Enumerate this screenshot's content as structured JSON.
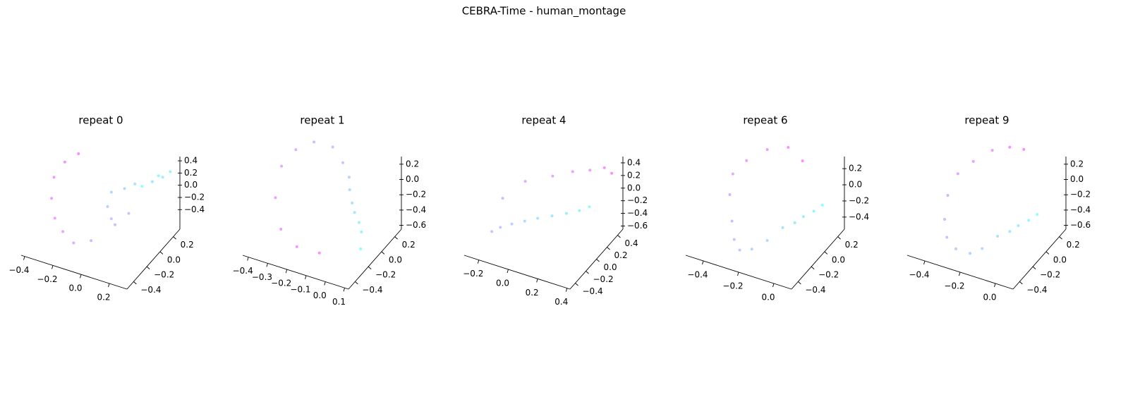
{
  "title": "CEBRA-Time - human_montage",
  "chart_data": [
    {
      "type": "scatter3d",
      "title": "repeat 0",
      "colormap": "cool",
      "x": [
        0.15,
        0.22,
        0.28,
        0.25,
        0.2,
        0.1,
        0.05,
        -0.02,
        0.0,
        0.05,
        0.15,
        0.1,
        0.0,
        -0.1,
        -0.2,
        -0.28,
        -0.35,
        -0.38,
        -0.35,
        -0.3
      ],
      "y": [
        0.1,
        0.2,
        0.25,
        0.2,
        0.15,
        0.1,
        0.05,
        0.0,
        -0.1,
        -0.15,
        -0.1,
        -0.2,
        -0.35,
        -0.4,
        -0.35,
        -0.3,
        -0.2,
        -0.1,
        0.0,
        0.1
      ],
      "z": [
        0.1,
        0.2,
        0.25,
        0.2,
        0.15,
        0.1,
        0.05,
        0.0,
        -0.1,
        -0.2,
        -0.1,
        -0.2,
        -0.35,
        -0.4,
        -0.35,
        -0.25,
        -0.1,
        0.1,
        0.25,
        0.3
      ],
      "xlim": [
        -0.425,
        0.325
      ],
      "ylim": [
        -0.5,
        0.3
      ],
      "zlim": [
        -0.72,
        0.47
      ],
      "xticks": [
        {
          "value": -0.4,
          "label": "−0.4"
        },
        {
          "value": -0.2,
          "label": "−0.2"
        },
        {
          "value": 0,
          "label": "0.0"
        },
        0.2
      ],
      "yticks": [
        {
          "value": -0.4,
          "label": "−0.4"
        },
        {
          "value": -0.2,
          "label": "−0.2"
        },
        {
          "value": 0,
          "label": "0.0"
        },
        0.2
      ],
      "zticks": [
        {
          "value": -0.4,
          "label": "−0.4"
        },
        {
          "value": -0.2,
          "label": "−0.2"
        },
        {
          "value": 0,
          "label": "0.0"
        },
        0.2,
        0.4
      ]
    },
    {
      "type": "scatter3d",
      "title": "repeat 1",
      "colormap": "cool",
      "x": [
        0.08,
        0.05,
        0.02,
        -0.02,
        -0.05,
        -0.08,
        -0.1,
        -0.15,
        -0.22,
        -0.3,
        -0.36,
        -0.4,
        -0.38,
        -0.3,
        -0.2,
        -0.1
      ],
      "y": [
        -0.2,
        -0.1,
        -0.05,
        0.0,
        0.05,
        0.1,
        0.15,
        0.2,
        0.25,
        0.2,
        0.1,
        0.0,
        -0.15,
        -0.3,
        -0.35,
        -0.3
      ],
      "z": [
        -0.45,
        -0.35,
        -0.3,
        -0.25,
        -0.2,
        -0.1,
        0.0,
        0.1,
        0.2,
        0.25,
        0.2,
        0.05,
        -0.2,
        -0.4,
        -0.5,
        -0.55
      ],
      "xlim": [
        -0.43,
        0.12
      ],
      "ylim": [
        -0.5,
        0.3
      ],
      "zlim": [
        -0.65,
        0.3
      ],
      "xticks": [
        {
          "value": -0.4,
          "label": "−0.4"
        },
        {
          "value": -0.3,
          "label": "−0.3"
        },
        {
          "value": -0.2,
          "label": "−0.2"
        },
        {
          "value": -0.1,
          "label": "−0.1"
        },
        {
          "value": 0,
          "label": "0.0"
        },
        0.1
      ],
      "yticks": [
        {
          "value": -0.4,
          "label": "−0.4"
        },
        {
          "value": -0.2,
          "label": "−0.2"
        },
        {
          "value": 0,
          "label": "0.0"
        },
        0.2
      ],
      "zticks": [
        {
          "value": -0.6,
          "label": "−0.6"
        },
        {
          "value": -0.4,
          "label": "−0.4"
        },
        {
          "value": -0.2,
          "label": "−0.2"
        },
        {
          "value": 0,
          "label": "0.0"
        },
        0.2
      ]
    },
    {
      "type": "scatter3d",
      "title": "repeat 4",
      "colormap": "cool",
      "x": [
        0.3,
        0.25,
        0.18,
        0.1,
        0.02,
        -0.05,
        -0.12,
        -0.18,
        -0.22,
        -0.2,
        -0.1,
        0.05,
        0.15,
        0.25,
        0.33,
        0.38
      ],
      "y": [
        0.2,
        0.15,
        0.1,
        0.05,
        0.0,
        -0.05,
        -0.1,
        -0.15,
        -0.2,
        -0.05,
        0.1,
        0.2,
        0.3,
        0.35,
        0.4,
        0.4
      ],
      "z": [
        -0.1,
        -0.15,
        -0.2,
        -0.25,
        -0.3,
        -0.35,
        -0.4,
        -0.45,
        -0.5,
        -0.1,
        0.1,
        0.2,
        0.25,
        0.3,
        0.35,
        0.3
      ],
      "xlim": [
        -0.3,
        0.42
      ],
      "ylim": [
        -0.5,
        0.5
      ],
      "zlim": [
        -0.65,
        0.5
      ],
      "xticks": [
        {
          "value": -0.2,
          "label": "−0.2"
        },
        {
          "value": 0,
          "label": "0.0"
        },
        0.2,
        0.4
      ],
      "yticks": [
        {
          "value": -0.4,
          "label": "−0.4"
        },
        {
          "value": -0.2,
          "label": "−0.2"
        },
        {
          "value": 0,
          "label": "0.0"
        },
        0.2,
        0.4
      ],
      "zticks": [
        {
          "value": -0.6,
          "label": "−0.6"
        },
        {
          "value": -0.4,
          "label": "−0.4"
        },
        {
          "value": -0.2,
          "label": "−0.2"
        },
        {
          "value": 0,
          "label": "0.0"
        },
        0.2,
        0.4
      ]
    },
    {
      "type": "scatter3d",
      "title": "repeat 6",
      "colormap": "cool",
      "x": [
        0.05,
        0.02,
        -0.02,
        -0.05,
        -0.1,
        -0.15,
        -0.2,
        -0.25,
        -0.3,
        -0.35,
        -0.4,
        -0.42,
        -0.38,
        -0.3,
        -0.2,
        -0.1
      ],
      "y": [
        0.1,
        0.05,
        0.0,
        -0.05,
        -0.1,
        -0.2,
        -0.3,
        -0.35,
        -0.3,
        -0.2,
        -0.1,
        0.0,
        0.1,
        0.2,
        0.25,
        0.2
      ],
      "z": [
        -0.1,
        -0.15,
        -0.2,
        -0.25,
        -0.3,
        -0.4,
        -0.45,
        -0.45,
        -0.4,
        -0.3,
        -0.1,
        0.05,
        0.15,
        0.25,
        0.3,
        0.25
      ],
      "xlim": [
        -0.5,
        0.1
      ],
      "ylim": [
        -0.5,
        0.3
      ],
      "zlim": [
        -0.55,
        0.35
      ],
      "xticks": [
        {
          "value": -0.4,
          "label": "−0.4"
        },
        {
          "value": -0.2,
          "label": "−0.2"
        },
        {
          "value": 0,
          "label": "0.0"
        }
      ],
      "yticks": [
        {
          "value": -0.4,
          "label": "−0.4"
        },
        {
          "value": -0.2,
          "label": "−0.2"
        },
        {
          "value": 0,
          "label": "0.0"
        },
        0.2
      ],
      "zticks": [
        {
          "value": -0.4,
          "label": "−0.4"
        },
        {
          "value": -0.2,
          "label": "−0.2"
        },
        {
          "value": 0,
          "label": "0.0"
        },
        0.2
      ]
    },
    {
      "type": "scatter3d",
      "title": "repeat 9",
      "colormap": "cool",
      "x": [
        0.05,
        0.02,
        -0.02,
        -0.05,
        -0.1,
        -0.15,
        -0.2,
        -0.28,
        -0.35,
        -0.4,
        -0.42,
        -0.4,
        -0.35,
        -0.28,
        -0.2,
        -0.12
      ],
      "y": [
        0.0,
        -0.05,
        -0.1,
        -0.15,
        -0.2,
        -0.3,
        -0.35,
        -0.35,
        -0.3,
        -0.2,
        -0.1,
        0.0,
        0.1,
        0.2,
        0.25,
        0.25
      ],
      "z": [
        -0.2,
        -0.25,
        -0.3,
        -0.35,
        -0.4,
        -0.5,
        -0.55,
        -0.55,
        -0.5,
        -0.4,
        -0.2,
        0.0,
        0.1,
        0.2,
        0.25,
        0.28
      ],
      "xlim": [
        -0.5,
        0.1
      ],
      "ylim": [
        -0.5,
        0.3
      ],
      "zlim": [
        -0.65,
        0.3
      ],
      "xticks": [
        {
          "value": -0.4,
          "label": "−0.4"
        },
        {
          "value": -0.2,
          "label": "−0.2"
        },
        {
          "value": 0,
          "label": "0.0"
        }
      ],
      "yticks": [
        {
          "value": -0.4,
          "label": "−0.4"
        },
        {
          "value": -0.2,
          "label": "−0.2"
        },
        {
          "value": 0,
          "label": "0.0"
        },
        0.2
      ],
      "zticks": [
        {
          "value": -0.6,
          "label": "−0.6"
        },
        {
          "value": -0.4,
          "label": "−0.4"
        },
        {
          "value": -0.2,
          "label": "−0.2"
        },
        {
          "value": 0,
          "label": "0.0"
        },
        0.2
      ]
    }
  ]
}
